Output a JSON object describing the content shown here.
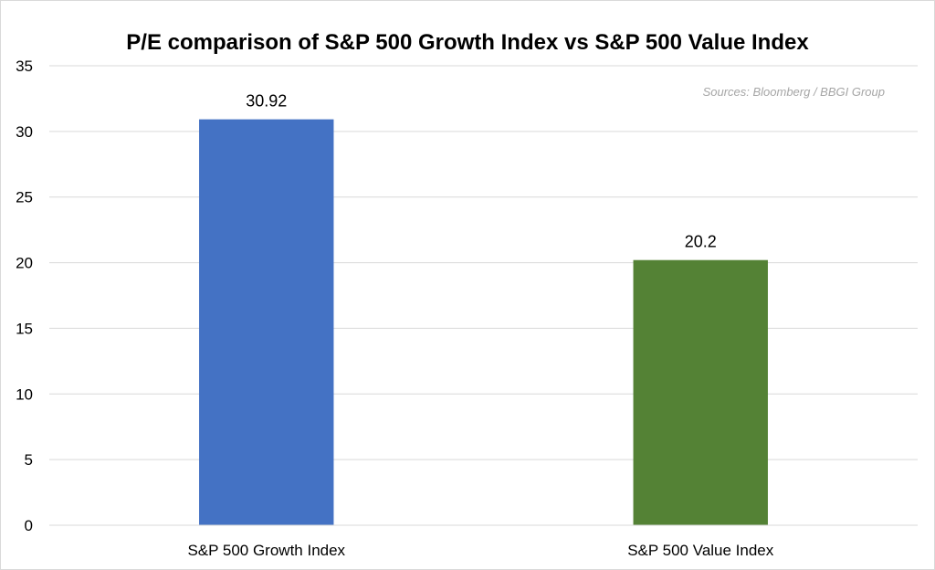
{
  "chart_data": {
    "type": "bar",
    "title": "P/E comparison of S&P 500 Growth Index vs S&P 500 Value Index",
    "source": "Sources: Bloomberg / BBGI Group",
    "categories": [
      "S&P 500 Growth Index",
      "S&P 500 Value Index"
    ],
    "values": [
      30.92,
      20.2
    ],
    "value_labels": [
      "30.92",
      "20.2"
    ],
    "colors": [
      "#4472c4",
      "#548235"
    ],
    "xlabel": "",
    "ylabel": "",
    "ylim": [
      0,
      35
    ],
    "yticks": [
      0,
      5,
      10,
      15,
      20,
      25,
      30,
      35
    ],
    "grid": true,
    "legend": "none"
  }
}
